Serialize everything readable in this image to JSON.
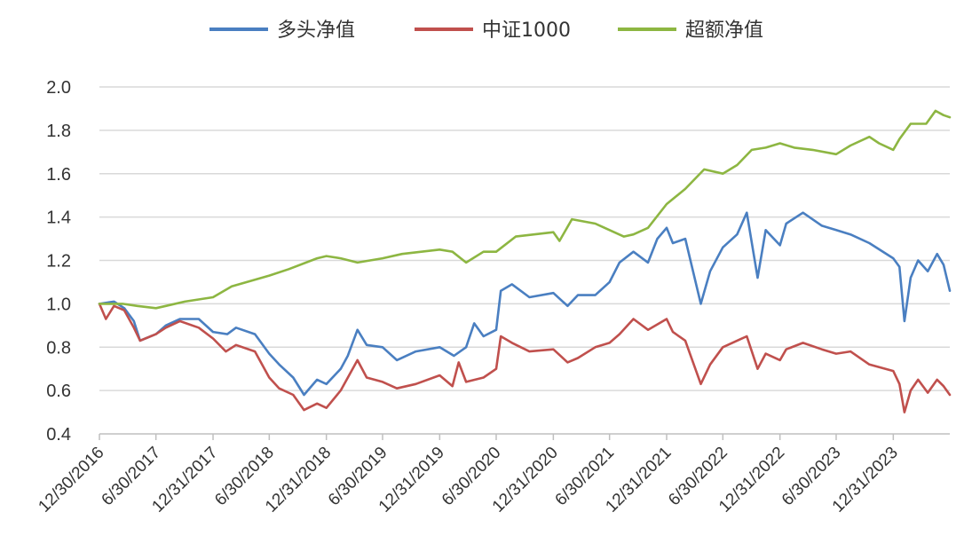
{
  "chart_data": {
    "type": "line",
    "title": "",
    "xlabel": "",
    "ylabel": "",
    "ylim": [
      0.4,
      2.0
    ],
    "yticks": [
      "0.4",
      "0.6",
      "0.8",
      "1.0",
      "1.2",
      "1.4",
      "1.6",
      "1.8",
      "2.0"
    ],
    "xtick_labels": [
      "12/30/2016",
      "6/30/2017",
      "12/31/2017",
      "6/30/2018",
      "12/31/2018",
      "6/30/2019",
      "12/31/2019",
      "6/30/2020",
      "12/31/2020",
      "6/30/2021",
      "12/31/2021",
      "6/30/2022",
      "12/31/2022",
      "6/30/2023",
      "12/31/2023"
    ],
    "xlim": [
      "2016-12-30",
      "2024-06-30"
    ],
    "grid": true,
    "legend_position": "top",
    "series": [
      {
        "name": "多头净值",
        "color": "#4a7fc1",
        "points": [
          [
            "2016-12-30",
            1.0
          ],
          [
            "2017-02-15",
            1.01
          ],
          [
            "2017-03-20",
            0.98
          ],
          [
            "2017-04-20",
            0.92
          ],
          [
            "2017-05-10",
            0.83
          ],
          [
            "2017-06-30",
            0.86
          ],
          [
            "2017-08-01",
            0.9
          ],
          [
            "2017-09-15",
            0.93
          ],
          [
            "2017-11-15",
            0.93
          ],
          [
            "2017-12-31",
            0.87
          ],
          [
            "2018-02-15",
            0.86
          ],
          [
            "2018-03-15",
            0.89
          ],
          [
            "2018-05-15",
            0.86
          ],
          [
            "2018-06-30",
            0.77
          ],
          [
            "2018-08-01",
            0.72
          ],
          [
            "2018-09-15",
            0.66
          ],
          [
            "2018-10-20",
            0.58
          ],
          [
            "2018-12-01",
            0.65
          ],
          [
            "2018-12-31",
            0.63
          ],
          [
            "2019-02-15",
            0.7
          ],
          [
            "2019-03-10",
            0.76
          ],
          [
            "2019-04-10",
            0.88
          ],
          [
            "2019-05-10",
            0.81
          ],
          [
            "2019-06-30",
            0.8
          ],
          [
            "2019-08-15",
            0.74
          ],
          [
            "2019-10-15",
            0.78
          ],
          [
            "2019-12-31",
            0.8
          ],
          [
            "2020-02-15",
            0.76
          ],
          [
            "2020-03-25",
            0.8
          ],
          [
            "2020-04-20",
            0.91
          ],
          [
            "2020-05-20",
            0.85
          ],
          [
            "2020-06-30",
            0.88
          ],
          [
            "2020-07-15",
            1.06
          ],
          [
            "2020-08-20",
            1.09
          ],
          [
            "2020-10-15",
            1.03
          ],
          [
            "2020-12-31",
            1.05
          ],
          [
            "2021-02-15",
            0.99
          ],
          [
            "2021-03-20",
            1.04
          ],
          [
            "2021-05-15",
            1.04
          ],
          [
            "2021-06-30",
            1.1
          ],
          [
            "2021-08-01",
            1.19
          ],
          [
            "2021-09-15",
            1.24
          ],
          [
            "2021-11-01",
            1.19
          ],
          [
            "2021-12-01",
            1.3
          ],
          [
            "2021-12-31",
            1.35
          ],
          [
            "2022-01-20",
            1.28
          ],
          [
            "2022-03-01",
            1.3
          ],
          [
            "2022-04-20",
            1.0
          ],
          [
            "2022-05-20",
            1.15
          ],
          [
            "2022-06-30",
            1.26
          ],
          [
            "2022-08-15",
            1.32
          ],
          [
            "2022-09-15",
            1.42
          ],
          [
            "2022-10-20",
            1.12
          ],
          [
            "2022-11-15",
            1.34
          ],
          [
            "2022-12-31",
            1.27
          ],
          [
            "2023-01-20",
            1.37
          ],
          [
            "2023-03-15",
            1.42
          ],
          [
            "2023-05-15",
            1.36
          ],
          [
            "2023-06-30",
            1.34
          ],
          [
            "2023-08-15",
            1.32
          ],
          [
            "2023-10-15",
            1.28
          ],
          [
            "2023-12-31",
            1.21
          ],
          [
            "2024-01-20",
            1.17
          ],
          [
            "2024-02-05",
            0.92
          ],
          [
            "2024-02-25",
            1.12
          ],
          [
            "2024-03-20",
            1.2
          ],
          [
            "2024-04-20",
            1.15
          ],
          [
            "2024-05-20",
            1.23
          ],
          [
            "2024-06-10",
            1.18
          ],
          [
            "2024-06-30",
            1.06
          ]
        ]
      },
      {
        "name": "中证1000",
        "color": "#c0504d",
        "points": [
          [
            "2016-12-30",
            1.0
          ],
          [
            "2017-01-20",
            0.93
          ],
          [
            "2017-02-15",
            0.99
          ],
          [
            "2017-03-20",
            0.97
          ],
          [
            "2017-04-20",
            0.89
          ],
          [
            "2017-05-10",
            0.83
          ],
          [
            "2017-06-30",
            0.86
          ],
          [
            "2017-08-01",
            0.89
          ],
          [
            "2017-09-15",
            0.92
          ],
          [
            "2017-11-15",
            0.89
          ],
          [
            "2017-12-31",
            0.84
          ],
          [
            "2018-02-10",
            0.78
          ],
          [
            "2018-03-15",
            0.81
          ],
          [
            "2018-05-15",
            0.78
          ],
          [
            "2018-06-30",
            0.66
          ],
          [
            "2018-08-01",
            0.61
          ],
          [
            "2018-09-15",
            0.58
          ],
          [
            "2018-10-20",
            0.51
          ],
          [
            "2018-12-01",
            0.54
          ],
          [
            "2018-12-31",
            0.52
          ],
          [
            "2019-02-15",
            0.6
          ],
          [
            "2019-04-10",
            0.74
          ],
          [
            "2019-05-10",
            0.66
          ],
          [
            "2019-06-30",
            0.64
          ],
          [
            "2019-08-15",
            0.61
          ],
          [
            "2019-10-15",
            0.63
          ],
          [
            "2019-12-31",
            0.67
          ],
          [
            "2020-02-10",
            0.62
          ],
          [
            "2020-03-01",
            0.73
          ],
          [
            "2020-03-25",
            0.64
          ],
          [
            "2020-05-20",
            0.66
          ],
          [
            "2020-06-30",
            0.7
          ],
          [
            "2020-07-15",
            0.85
          ],
          [
            "2020-08-20",
            0.82
          ],
          [
            "2020-10-15",
            0.78
          ],
          [
            "2020-12-31",
            0.79
          ],
          [
            "2021-02-15",
            0.73
          ],
          [
            "2021-03-20",
            0.75
          ],
          [
            "2021-05-15",
            0.8
          ],
          [
            "2021-06-30",
            0.82
          ],
          [
            "2021-08-01",
            0.86
          ],
          [
            "2021-09-15",
            0.93
          ],
          [
            "2021-11-01",
            0.88
          ],
          [
            "2021-12-31",
            0.93
          ],
          [
            "2022-01-20",
            0.87
          ],
          [
            "2022-03-01",
            0.83
          ],
          [
            "2022-04-20",
            0.63
          ],
          [
            "2022-05-20",
            0.72
          ],
          [
            "2022-06-30",
            0.8
          ],
          [
            "2022-08-15",
            0.83
          ],
          [
            "2022-09-15",
            0.85
          ],
          [
            "2022-10-20",
            0.7
          ],
          [
            "2022-11-15",
            0.77
          ],
          [
            "2022-12-31",
            0.74
          ],
          [
            "2023-01-20",
            0.79
          ],
          [
            "2023-03-15",
            0.82
          ],
          [
            "2023-05-15",
            0.79
          ],
          [
            "2023-06-30",
            0.77
          ],
          [
            "2023-08-15",
            0.78
          ],
          [
            "2023-10-15",
            0.72
          ],
          [
            "2023-12-31",
            0.69
          ],
          [
            "2024-01-20",
            0.63
          ],
          [
            "2024-02-05",
            0.5
          ],
          [
            "2024-02-25",
            0.6
          ],
          [
            "2024-03-20",
            0.65
          ],
          [
            "2024-04-20",
            0.59
          ],
          [
            "2024-05-20",
            0.65
          ],
          [
            "2024-06-10",
            0.62
          ],
          [
            "2024-06-30",
            0.58
          ]
        ]
      },
      {
        "name": "超额净值",
        "color": "#8db642",
        "points": [
          [
            "2016-12-30",
            1.0
          ],
          [
            "2017-03-15",
            1.0
          ],
          [
            "2017-05-01",
            0.99
          ],
          [
            "2017-06-30",
            0.98
          ],
          [
            "2017-08-01",
            0.99
          ],
          [
            "2017-10-01",
            1.01
          ],
          [
            "2017-12-31",
            1.03
          ],
          [
            "2018-03-01",
            1.08
          ],
          [
            "2018-06-30",
            1.13
          ],
          [
            "2018-09-01",
            1.16
          ],
          [
            "2018-12-01",
            1.21
          ],
          [
            "2018-12-31",
            1.22
          ],
          [
            "2019-02-15",
            1.21
          ],
          [
            "2019-04-10",
            1.19
          ],
          [
            "2019-06-30",
            1.21
          ],
          [
            "2019-09-01",
            1.23
          ],
          [
            "2019-12-31",
            1.25
          ],
          [
            "2020-02-10",
            1.24
          ],
          [
            "2020-03-25",
            1.19
          ],
          [
            "2020-05-20",
            1.24
          ],
          [
            "2020-06-30",
            1.24
          ],
          [
            "2020-09-01",
            1.31
          ],
          [
            "2020-12-31",
            1.33
          ],
          [
            "2021-01-20",
            1.29
          ],
          [
            "2021-03-01",
            1.39
          ],
          [
            "2021-05-15",
            1.37
          ],
          [
            "2021-06-30",
            1.34
          ],
          [
            "2021-08-15",
            1.31
          ],
          [
            "2021-09-15",
            1.32
          ],
          [
            "2021-11-01",
            1.35
          ],
          [
            "2021-12-31",
            1.46
          ],
          [
            "2022-03-01",
            1.53
          ],
          [
            "2022-05-01",
            1.62
          ],
          [
            "2022-06-30",
            1.6
          ],
          [
            "2022-08-15",
            1.64
          ],
          [
            "2022-10-01",
            1.71
          ],
          [
            "2022-11-15",
            1.72
          ],
          [
            "2022-12-31",
            1.74
          ],
          [
            "2023-02-15",
            1.72
          ],
          [
            "2023-04-15",
            1.71
          ],
          [
            "2023-06-30",
            1.69
          ],
          [
            "2023-08-15",
            1.73
          ],
          [
            "2023-10-15",
            1.77
          ],
          [
            "2023-11-15",
            1.74
          ],
          [
            "2023-12-31",
            1.71
          ],
          [
            "2024-01-20",
            1.76
          ],
          [
            "2024-02-25",
            1.83
          ],
          [
            "2024-04-15",
            1.83
          ],
          [
            "2024-05-15",
            1.89
          ],
          [
            "2024-06-10",
            1.87
          ],
          [
            "2024-06-30",
            1.86
          ]
        ]
      }
    ]
  }
}
